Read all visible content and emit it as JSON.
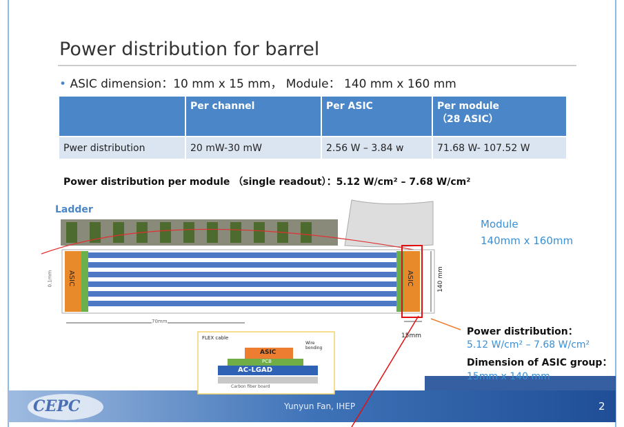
{
  "header": {
    "title": "Power distribution for barrel"
  },
  "bullet": "ASIC dimension：10 mm x 15 mm，  Module：  140 mm x 160 mm",
  "table": {
    "columns": [
      "Per channel",
      "Per ASIC",
      "Per module"
    ],
    "module_note": "（28 ASIC）",
    "rows": [
      [
        "Pwer distribution",
        "20 mW-30 mW",
        "2.56 W – 3.84 w",
        "71.68 W- 107.52 W"
      ]
    ]
  },
  "summary": "Power distribution per module （single readout）：5.12 W/cm² – 7.68 W/cm²",
  "figure": {
    "ladder": "Ladder",
    "asic_left": "ASIC",
    "asic_right": "ASIC",
    "height": "140 mm",
    "gap": "0.1mm",
    "half_width": "70mm",
    "asic_width": "15mm"
  },
  "inset": {
    "flex": "FLEX cable",
    "asic": "ASIC",
    "pcb": "PCB",
    "wire": "Wire bonding",
    "lgad": "AC-LGAD",
    "carbon": "Carbon fiber board"
  },
  "side": {
    "module": "Module",
    "module_size": "140mm x 160mm",
    "power_heading": "Power distribution：",
    "power_value": "5.12 W/cm² – 7.68 W/cm²",
    "dimension_heading": "Dimension of ASIC group：",
    "dimension_value": "15mm x 140 mm"
  },
  "footer": {
    "logo": "CEPC",
    "author": "Yunyun Fan, IHEP",
    "page": "2"
  }
}
